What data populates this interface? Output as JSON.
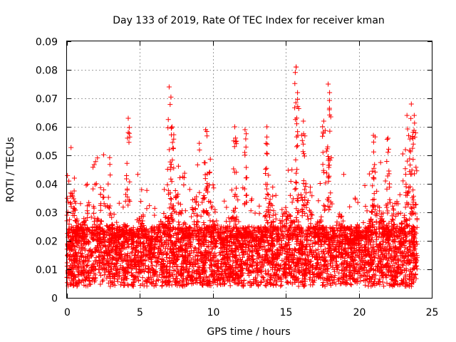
{
  "chart_data": {
    "type": "scatter",
    "title": "Day 133 of 2019, Rate Of TEC Index for receiver kman",
    "xlabel": "GPS time / hours",
    "ylabel": "ROTI / TECUs",
    "xlim": [
      0,
      25
    ],
    "ylim": [
      0,
      0.09
    ],
    "x_ticks": [
      0,
      5,
      10,
      15,
      20,
      25
    ],
    "x_tick_labels": [
      "0",
      "5",
      "10",
      "15",
      "20",
      "25"
    ],
    "y_ticks": [
      0,
      0.01,
      0.02,
      0.03,
      0.04,
      0.05,
      0.06,
      0.07,
      0.08,
      0.09
    ],
    "y_tick_labels": [
      "0",
      "0.01",
      "0.02",
      "0.03",
      "0.04",
      "0.05",
      "0.06",
      "0.07",
      "0.08",
      "0.09"
    ],
    "grid": true,
    "marker": "+",
    "marker_color": "#ff0000",
    "series": [
      {
        "name": "ROTI",
        "x_range": [
          0,
          24
        ],
        "typical_range": [
          0.004,
          0.025
        ],
        "peaks": [
          {
            "x": 4.2,
            "y": 0.063
          },
          {
            "x": 7.0,
            "y": 0.074
          },
          {
            "x": 7.2,
            "y": 0.06
          },
          {
            "x": 9.5,
            "y": 0.059
          },
          {
            "x": 11.5,
            "y": 0.06
          },
          {
            "x": 12.2,
            "y": 0.059
          },
          {
            "x": 13.7,
            "y": 0.06
          },
          {
            "x": 15.7,
            "y": 0.081
          },
          {
            "x": 15.8,
            "y": 0.072
          },
          {
            "x": 16.2,
            "y": 0.062
          },
          {
            "x": 17.6,
            "y": 0.062
          },
          {
            "x": 17.9,
            "y": 0.075
          },
          {
            "x": 18.0,
            "y": 0.072
          },
          {
            "x": 21.0,
            "y": 0.057
          },
          {
            "x": 22.0,
            "y": 0.056
          },
          {
            "x": 23.3,
            "y": 0.064
          },
          {
            "x": 23.6,
            "y": 0.068
          },
          {
            "x": 23.8,
            "y": 0.064
          }
        ]
      }
    ]
  }
}
